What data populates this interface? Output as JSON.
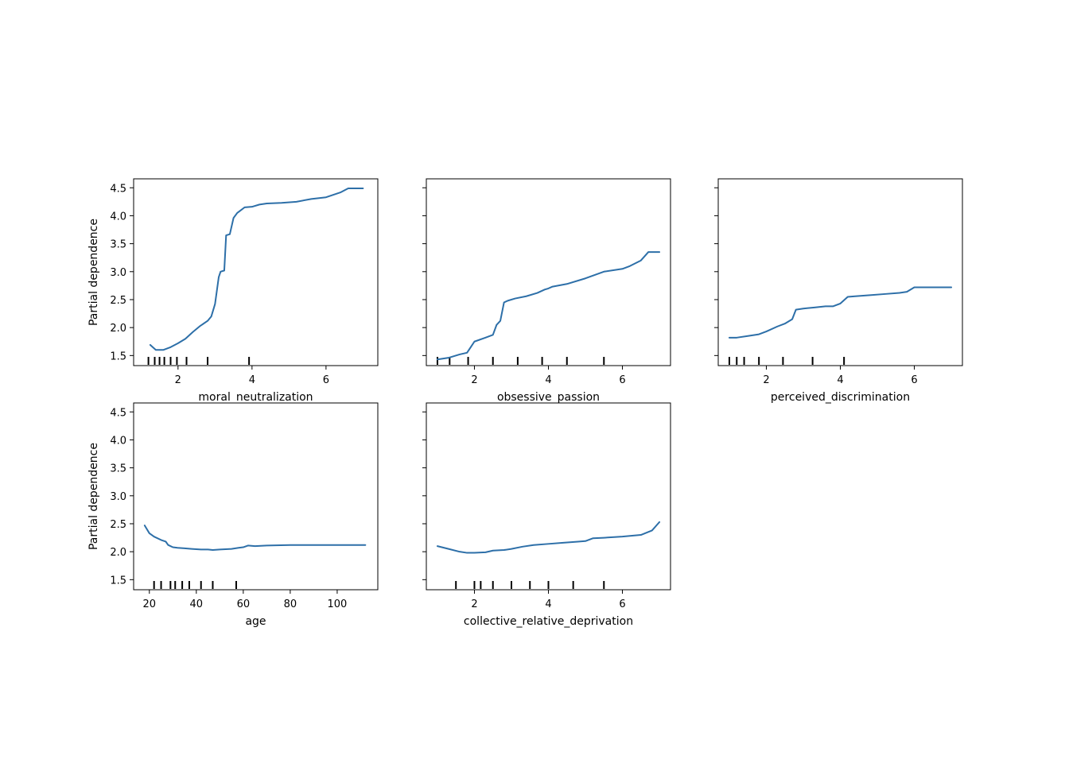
{
  "figure": {
    "background": "#ffffff",
    "line_color": "#2d6fa8",
    "shared_y": true
  },
  "chart_data": [
    {
      "type": "line",
      "id": "moral",
      "title": "",
      "xlabel": "moral_neutralization",
      "ylabel": "Partial dependence",
      "xlim": [
        0.8,
        7.4
      ],
      "ylim": [
        1.32,
        4.66
      ],
      "xticks": [
        2,
        4,
        6
      ],
      "yticks": [
        1.5,
        2.0,
        2.5,
        3.0,
        3.5,
        4.0,
        4.5
      ],
      "yticklabels": [
        "1.5",
        "2.0",
        "2.5",
        "3.0",
        "3.5",
        "4.0",
        "4.5"
      ],
      "show_ytick_labels": true,
      "deciles": [
        1.2,
        1.37,
        1.5,
        1.63,
        1.8,
        1.97,
        2.23,
        2.8,
        3.92
      ],
      "series": [
        {
          "x": [
            1.25,
            1.4,
            1.6,
            1.8,
            2.0,
            2.2,
            2.4,
            2.6,
            2.8,
            2.9,
            3.0,
            3.1,
            3.15,
            3.25,
            3.3,
            3.4,
            3.5,
            3.6,
            3.7,
            3.8,
            4.0,
            4.2,
            4.4,
            4.8,
            5.2,
            5.6,
            6.0,
            6.4,
            6.6,
            7.0
          ],
          "y": [
            1.69,
            1.6,
            1.6,
            1.65,
            1.72,
            1.8,
            1.92,
            2.03,
            2.12,
            2.2,
            2.42,
            2.9,
            3.0,
            3.02,
            3.65,
            3.67,
            3.96,
            4.05,
            4.1,
            4.15,
            4.16,
            4.2,
            4.22,
            4.23,
            4.25,
            4.3,
            4.33,
            4.42,
            4.49,
            4.49
          ]
        }
      ]
    },
    {
      "type": "line",
      "id": "obsessive",
      "title": "",
      "xlabel": "obsessive_passion",
      "ylabel": "",
      "xlim": [
        0.7,
        7.3
      ],
      "ylim": [
        1.32,
        4.66
      ],
      "xticks": [
        2,
        4,
        6
      ],
      "yticks": [
        1.5,
        2.0,
        2.5,
        3.0,
        3.5,
        4.0,
        4.5
      ],
      "yticklabels": [
        "1.5",
        "2.0",
        "2.5",
        "3.0",
        "3.5",
        "4.0",
        "4.5"
      ],
      "show_ytick_labels": false,
      "deciles": [
        1.0,
        1.33,
        1.83,
        2.5,
        3.17,
        3.83,
        4.5,
        5.5
      ],
      "series": [
        {
          "x": [
            1.0,
            1.3,
            1.6,
            1.8,
            1.9,
            2.0,
            2.3,
            2.5,
            2.6,
            2.7,
            2.8,
            2.9,
            3.1,
            3.4,
            3.7,
            3.9,
            4.0,
            4.1,
            4.5,
            5.0,
            5.5,
            6.0,
            6.2,
            6.5,
            6.7,
            6.9,
            7.0
          ],
          "y": [
            1.43,
            1.46,
            1.52,
            1.55,
            1.65,
            1.75,
            1.82,
            1.87,
            2.05,
            2.12,
            2.45,
            2.48,
            2.52,
            2.56,
            2.62,
            2.68,
            2.7,
            2.73,
            2.78,
            2.88,
            3.0,
            3.05,
            3.1,
            3.2,
            3.35,
            3.35,
            3.35
          ]
        }
      ]
    },
    {
      "type": "line",
      "id": "perceived",
      "title": "",
      "xlabel": "perceived_discrimination",
      "ylabel": "",
      "xlim": [
        0.7,
        7.3
      ],
      "ylim": [
        1.32,
        4.66
      ],
      "xticks": [
        2,
        4,
        6
      ],
      "yticks": [
        1.5,
        2.0,
        2.5,
        3.0,
        3.5,
        4.0,
        4.5
      ],
      "yticklabels": [
        "1.5",
        "2.0",
        "2.5",
        "3.0",
        "3.5",
        "4.0",
        "4.5"
      ],
      "show_ytick_labels": false,
      "deciles": [
        1.0,
        1.2,
        1.4,
        1.8,
        2.45,
        3.25,
        4.1
      ],
      "series": [
        {
          "x": [
            1.0,
            1.2,
            1.5,
            1.8,
            2.0,
            2.3,
            2.5,
            2.7,
            2.8,
            3.0,
            3.3,
            3.6,
            3.8,
            4.0,
            4.2,
            4.4,
            4.8,
            5.2,
            5.6,
            5.8,
            6.0,
            6.5,
            7.0
          ],
          "y": [
            1.82,
            1.82,
            1.85,
            1.88,
            1.93,
            2.02,
            2.07,
            2.15,
            2.32,
            2.34,
            2.36,
            2.38,
            2.38,
            2.43,
            2.55,
            2.56,
            2.58,
            2.6,
            2.62,
            2.64,
            2.72,
            2.72,
            2.72
          ]
        }
      ]
    },
    {
      "type": "line",
      "id": "age",
      "title": "",
      "xlabel": "age",
      "ylabel": "Partial dependence",
      "xlim": [
        13.3,
        117.3
      ],
      "ylim": [
        1.32,
        4.66
      ],
      "xticks": [
        20,
        40,
        60,
        80,
        100
      ],
      "yticks": [
        1.5,
        2.0,
        2.5,
        3.0,
        3.5,
        4.0,
        4.5
      ],
      "yticklabels": [
        "1.5",
        "2.0",
        "2.5",
        "3.0",
        "3.5",
        "4.0",
        "4.5"
      ],
      "show_ytick_labels": true,
      "deciles": [
        22,
        25,
        29,
        31,
        34,
        37,
        42,
        47,
        57
      ],
      "series": [
        {
          "x": [
            18,
            20,
            22,
            25,
            27,
            28,
            30,
            32,
            35,
            38,
            42,
            45,
            47,
            50,
            55,
            58,
            60,
            62,
            65,
            70,
            80,
            90,
            100,
            112
          ],
          "y": [
            2.47,
            2.33,
            2.27,
            2.21,
            2.18,
            2.12,
            2.08,
            2.07,
            2.06,
            2.05,
            2.04,
            2.04,
            2.03,
            2.04,
            2.05,
            2.07,
            2.08,
            2.11,
            2.1,
            2.11,
            2.12,
            2.12,
            2.12,
            2.12
          ]
        }
      ]
    },
    {
      "type": "line",
      "id": "collective",
      "title": "",
      "xlabel": "collective_relative_deprivation",
      "ylabel": "",
      "xlim": [
        0.7,
        7.3
      ],
      "ylim": [
        1.32,
        4.66
      ],
      "xticks": [
        2,
        4,
        6
      ],
      "yticks": [
        1.5,
        2.0,
        2.5,
        3.0,
        3.5,
        4.0,
        4.5
      ],
      "yticklabels": [
        "1.5",
        "2.0",
        "2.5",
        "3.0",
        "3.5",
        "4.0",
        "4.5"
      ],
      "show_ytick_labels": false,
      "deciles": [
        1.5,
        2.0,
        2.17,
        2.5,
        3.0,
        3.5,
        4.0,
        4.67,
        5.5
      ],
      "series": [
        {
          "x": [
            1.0,
            1.3,
            1.6,
            1.8,
            2.0,
            2.3,
            2.5,
            2.8,
            3.0,
            3.3,
            3.6,
            4.0,
            4.4,
            4.8,
            5.0,
            5.2,
            5.5,
            6.0,
            6.5,
            6.8,
            7.0
          ],
          "y": [
            2.1,
            2.05,
            2.0,
            1.98,
            1.98,
            1.99,
            2.02,
            2.03,
            2.05,
            2.09,
            2.12,
            2.14,
            2.16,
            2.18,
            2.19,
            2.24,
            2.25,
            2.27,
            2.3,
            2.38,
            2.53
          ]
        }
      ]
    }
  ]
}
